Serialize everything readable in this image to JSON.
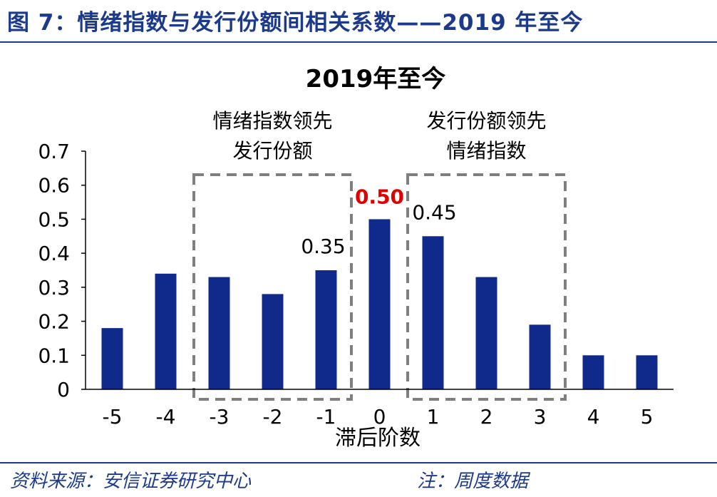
{
  "figure_title": "图 7：情绪指数与发行份额间相关系数——2019 年至今",
  "source_note": "资料来源：安信证券研究中心",
  "footnote": "注：周度数据",
  "chart_data": {
    "type": "bar",
    "title": "2019年至今",
    "xlabel": "滞后阶数",
    "ylabel": "",
    "categories": [
      "-5",
      "-4",
      "-3",
      "-2",
      "-1",
      "0",
      "1",
      "2",
      "3",
      "4",
      "5"
    ],
    "values": [
      0.18,
      0.34,
      0.33,
      0.28,
      0.35,
      0.5,
      0.45,
      0.33,
      0.19,
      0.1,
      0.1
    ],
    "ylim": [
      0,
      0.7
    ],
    "yticks": [
      "0",
      "0.1",
      "0.2",
      "0.3",
      "0.4",
      "0.5",
      "0.6",
      "0.7"
    ],
    "bar_color": "#102a8c",
    "highlight_color": "#e00000",
    "data_labels": [
      {
        "category": "-1",
        "text": "0.35",
        "highlight": false
      },
      {
        "category": "0",
        "text": "0.50",
        "highlight": true
      },
      {
        "category": "1",
        "text": "0.45",
        "highlight": false
      }
    ],
    "annotations": [
      {
        "lines": [
          "情绪指数领先",
          "发行份额"
        ],
        "from": "-3",
        "to": "-1"
      },
      {
        "lines": [
          "发行份额领先",
          "情绪指数"
        ],
        "from": "1",
        "to": "3"
      }
    ],
    "grid": false,
    "legend": "none"
  }
}
